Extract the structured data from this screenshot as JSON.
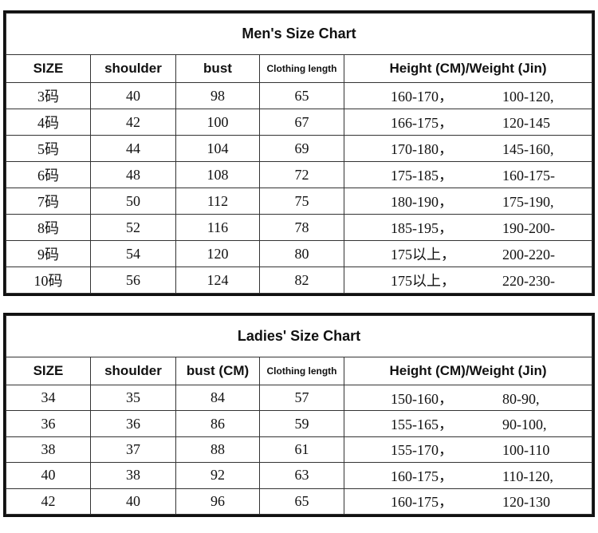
{
  "men": {
    "title": "Men's Size Chart",
    "headers": [
      "SIZE",
      "shoulder",
      "bust",
      "Clothing length",
      "Height (CM)/Weight (Jin)"
    ],
    "rows": [
      {
        "size": "3码",
        "shoulder": "40",
        "bust": "98",
        "length": "65",
        "height": "160-170，",
        "weight": "100-120,"
      },
      {
        "size": "4码",
        "shoulder": "42",
        "bust": "100",
        "length": "67",
        "height": "166-175，",
        "weight": "120-145"
      },
      {
        "size": "5码",
        "shoulder": "44",
        "bust": "104",
        "length": "69",
        "height": "170-180，",
        "weight": "145-160,"
      },
      {
        "size": "6码",
        "shoulder": "48",
        "bust": "108",
        "length": "72",
        "height": "175-185，",
        "weight": "160-175-"
      },
      {
        "size": "7码",
        "shoulder": "50",
        "bust": "112",
        "length": "75",
        "height": "180-190，",
        "weight": "175-190,"
      },
      {
        "size": "8码",
        "shoulder": "52",
        "bust": "116",
        "length": "78",
        "height": "185-195，",
        "weight": "190-200-"
      },
      {
        "size": "9码",
        "shoulder": "54",
        "bust": "120",
        "length": "80",
        "height": "175以上，",
        "weight": "200-220-"
      },
      {
        "size": "10码",
        "shoulder": "56",
        "bust": "124",
        "length": "82",
        "height": "175以上，",
        "weight": "220-230-"
      }
    ]
  },
  "ladies": {
    "title": "Ladies' Size Chart",
    "headers": [
      "SIZE",
      "shoulder",
      "bust (CM)",
      "Clothing length",
      "Height (CM)/Weight (Jin)"
    ],
    "rows": [
      {
        "size": "34",
        "shoulder": "35",
        "bust": "84",
        "length": "57",
        "height": "150-160，",
        "weight": "80-90,"
      },
      {
        "size": "36",
        "shoulder": "36",
        "bust": "86",
        "length": "59",
        "height": "155-165，",
        "weight": "90-100,"
      },
      {
        "size": "38",
        "shoulder": "37",
        "bust": "88",
        "length": "61",
        "height": "155-170，",
        "weight": "100-110"
      },
      {
        "size": "40",
        "shoulder": "38",
        "bust": "92",
        "length": "63",
        "height": "160-175，",
        "weight": "110-120,"
      },
      {
        "size": "42",
        "shoulder": "40",
        "bust": "96",
        "length": "65",
        "height": "160-175，",
        "weight": "120-130"
      }
    ]
  }
}
